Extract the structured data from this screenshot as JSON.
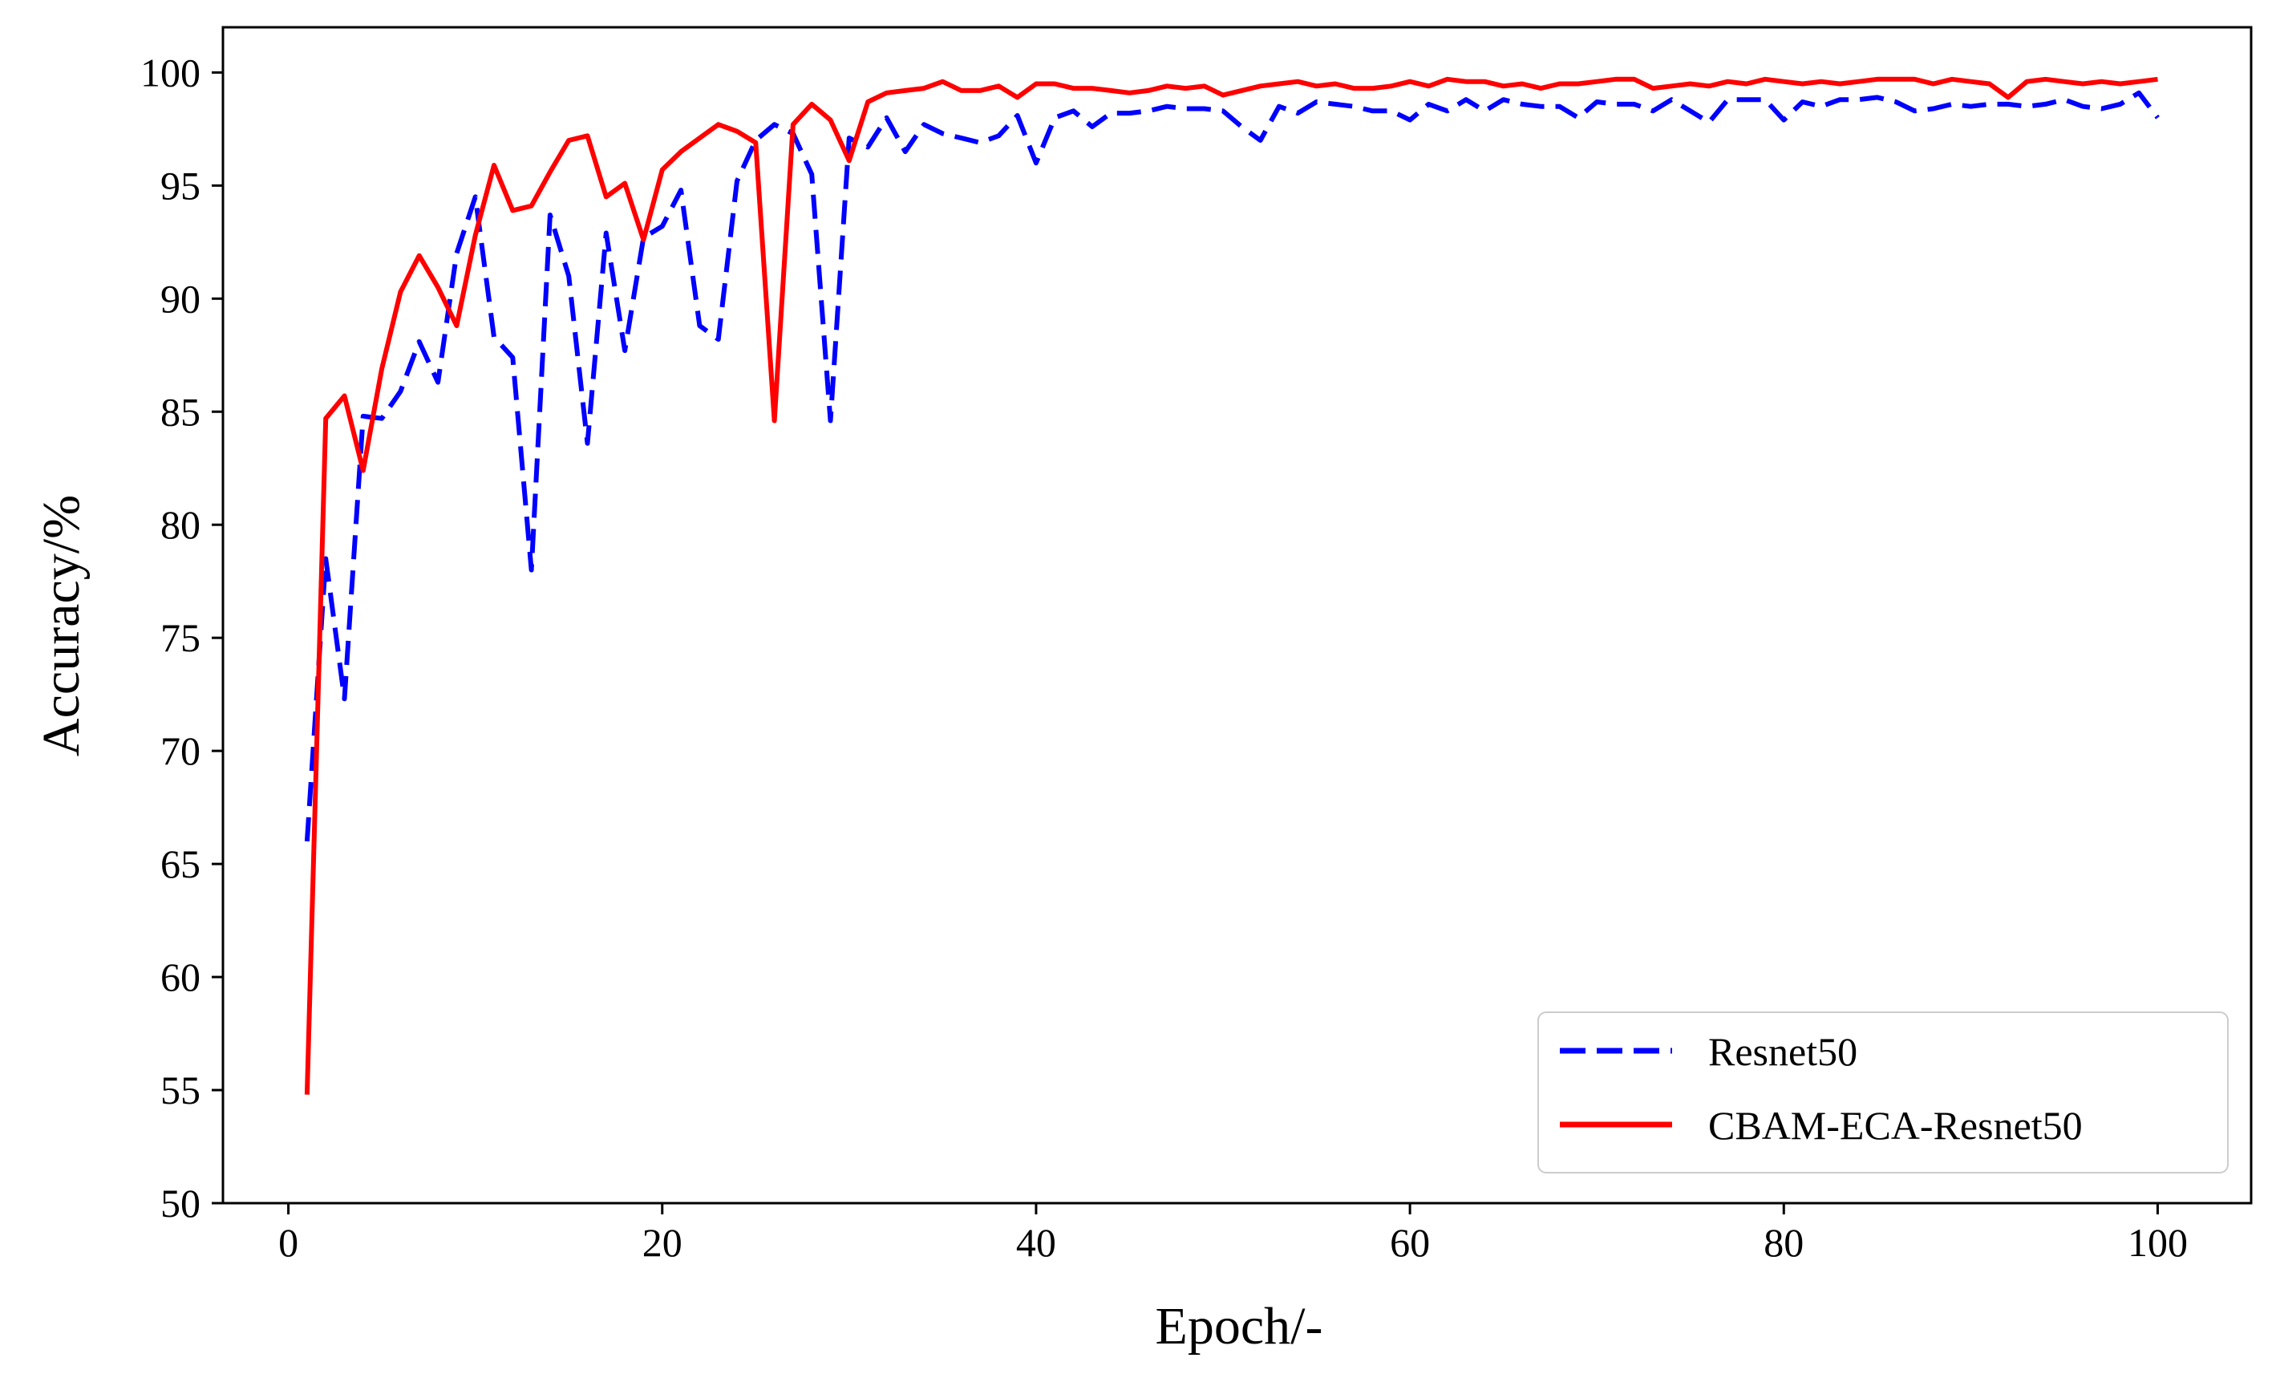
{
  "chart_data": {
    "type": "line",
    "title": "",
    "xlabel": "Epoch/-",
    "ylabel": "Accuracy/%",
    "xlim": [
      -3.5,
      105
    ],
    "ylim": [
      50,
      102
    ],
    "xticks": [
      0,
      20,
      40,
      60,
      80,
      100
    ],
    "yticks": [
      50,
      55,
      60,
      65,
      70,
      75,
      80,
      85,
      90,
      95,
      100
    ],
    "grid": false,
    "legend_position": "lower-right",
    "x": [
      1,
      2,
      3,
      4,
      5,
      6,
      7,
      8,
      9,
      10,
      11,
      12,
      13,
      14,
      15,
      16,
      17,
      18,
      19,
      20,
      21,
      22,
      23,
      24,
      25,
      26,
      27,
      28,
      29,
      30,
      31,
      32,
      33,
      34,
      35,
      36,
      37,
      38,
      39,
      40,
      41,
      42,
      43,
      44,
      45,
      46,
      47,
      48,
      49,
      50,
      51,
      52,
      53,
      54,
      55,
      56,
      57,
      58,
      59,
      60,
      61,
      62,
      63,
      64,
      65,
      66,
      67,
      68,
      69,
      70,
      71,
      72,
      73,
      74,
      75,
      76,
      77,
      78,
      79,
      80,
      81,
      82,
      83,
      84,
      85,
      86,
      87,
      88,
      89,
      90,
      91,
      92,
      93,
      94,
      95,
      96,
      97,
      98,
      99,
      100
    ],
    "series": [
      {
        "name": "Resnet50",
        "color": "#0000ff",
        "style": "dashed",
        "values": [
          66.0,
          78.5,
          72.3,
          84.8,
          84.7,
          85.9,
          88.1,
          86.3,
          92.0,
          94.5,
          88.3,
          87.4,
          78.0,
          93.7,
          91.0,
          83.6,
          92.9,
          87.7,
          92.7,
          93.2,
          94.8,
          88.8,
          88.2,
          95.2,
          97.0,
          97.7,
          97.3,
          95.5,
          84.6,
          97.1,
          96.7,
          98.0,
          96.5,
          97.7,
          97.3,
          97.1,
          96.9,
          97.2,
          98.1,
          96.0,
          98.0,
          98.3,
          97.6,
          98.2,
          98.2,
          98.3,
          98.5,
          98.4,
          98.4,
          98.3,
          97.6,
          97.0,
          98.5,
          98.2,
          98.7,
          98.6,
          98.5,
          98.3,
          98.3,
          97.9,
          98.6,
          98.3,
          98.8,
          98.3,
          98.8,
          98.6,
          98.5,
          98.5,
          98.0,
          98.7,
          98.6,
          98.6,
          98.3,
          98.8,
          98.3,
          97.8,
          98.8,
          98.8,
          98.8,
          97.9,
          98.7,
          98.5,
          98.8,
          98.8,
          98.9,
          98.7,
          98.3,
          98.4,
          98.6,
          98.5,
          98.6,
          98.6,
          98.5,
          98.6,
          98.8,
          98.5,
          98.4,
          98.6,
          99.1,
          98.0
        ]
      },
      {
        "name": "CBAM-ECA-Resnet50",
        "color": "#ff0000",
        "style": "solid",
        "values": [
          54.8,
          84.7,
          85.7,
          82.4,
          86.9,
          90.3,
          91.9,
          90.5,
          88.8,
          92.8,
          95.9,
          93.9,
          94.1,
          95.6,
          97.0,
          97.2,
          94.5,
          95.1,
          92.6,
          95.7,
          96.5,
          97.1,
          97.7,
          97.4,
          96.9,
          84.6,
          97.7,
          98.6,
          97.9,
          96.1,
          98.7,
          99.1,
          99.2,
          99.3,
          99.6,
          99.2,
          99.2,
          99.4,
          98.9,
          99.5,
          99.5,
          99.3,
          99.3,
          99.2,
          99.1,
          99.2,
          99.4,
          99.3,
          99.4,
          99.0,
          99.2,
          99.4,
          99.5,
          99.6,
          99.4,
          99.5,
          99.3,
          99.3,
          99.4,
          99.6,
          99.4,
          99.7,
          99.6,
          99.6,
          99.4,
          99.5,
          99.3,
          99.5,
          99.5,
          99.6,
          99.7,
          99.7,
          99.3,
          99.4,
          99.5,
          99.4,
          99.6,
          99.5,
          99.7,
          99.6,
          99.5,
          99.6,
          99.5,
          99.6,
          99.7,
          99.7,
          99.7,
          99.5,
          99.7,
          99.6,
          99.5,
          98.9,
          99.6,
          99.7,
          99.6,
          99.5,
          99.6,
          99.5,
          99.6,
          99.7
        ]
      }
    ]
  }
}
